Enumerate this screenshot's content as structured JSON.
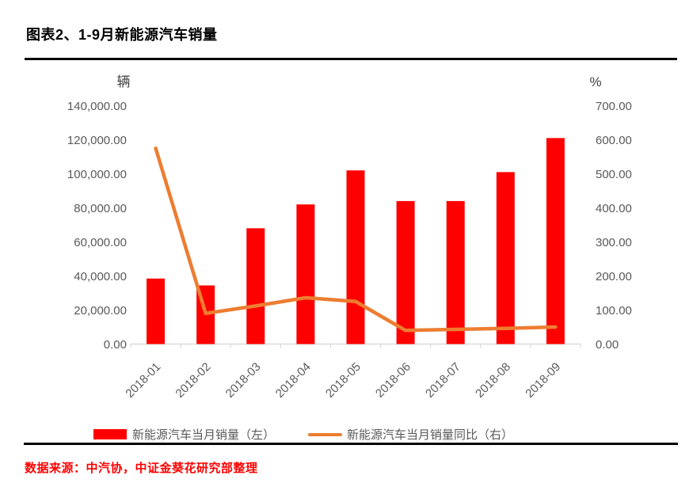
{
  "header": {
    "title": "图表2、1-9月新能源汽车销量"
  },
  "chart_data": {
    "type": "bar+line (dual axis)",
    "categories": [
      "2018-01",
      "2018-02",
      "2018-03",
      "2018-04",
      "2018-05",
      "2018-06",
      "2018-07",
      "2018-08",
      "2018-09"
    ],
    "series": [
      {
        "name": "新能源汽车当月销量（左）",
        "type": "bar",
        "axis": "left",
        "color": "#FF0000",
        "values": [
          38470,
          34420,
          68000,
          82000,
          102000,
          84000,
          84000,
          101000,
          121000
        ]
      },
      {
        "name": "新能源汽车当月销量同比（右）",
        "type": "line",
        "axis": "right",
        "color": "#ED7D31",
        "values": [
          575,
          90,
          112,
          136,
          125,
          40,
          43,
          46,
          50
        ]
      }
    ],
    "left_axis": {
      "unit": "辆",
      "min": 0,
      "max": 140000,
      "tick_step": 20000,
      "tick_labels": [
        "0.00",
        "20,000.00",
        "40,000.00",
        "60,000.00",
        "80,000.00",
        "100,000.00",
        "120,000.00",
        "140,000.00"
      ]
    },
    "right_axis": {
      "unit": "%",
      "min": 0,
      "max": 700,
      "tick_step": 100,
      "tick_labels": [
        "0.00",
        "100.00",
        "200.00",
        "300.00",
        "400.00",
        "500.00",
        "600.00",
        "700.00"
      ]
    },
    "grid": false,
    "legend_position": "bottom"
  },
  "source": {
    "text": "数据来源：中汽协，中证金葵花研究部整理",
    "color": "#FF0000"
  },
  "colors": {
    "axis_text": "#595959",
    "axis_unit_text": "#404040",
    "axis_line": "#D9D9D9",
    "divider": "#000000",
    "title_text": "#000000"
  }
}
